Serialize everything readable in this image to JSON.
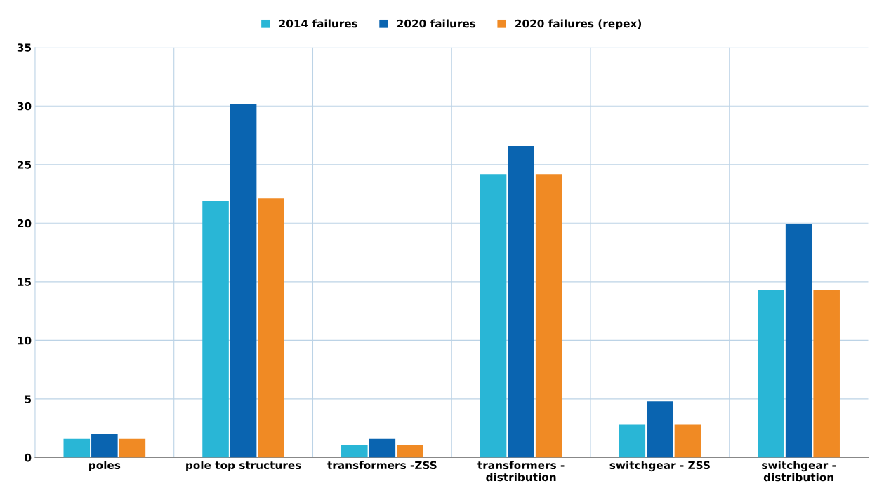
{
  "chart_data": {
    "type": "bar",
    "categories": [
      "poles",
      "pole top structures",
      "transformers -ZSS",
      "transformers -\ndistribution",
      "switchgear - ZSS",
      "switchgear -\ndistribution"
    ],
    "series": [
      {
        "name": "2014 failures",
        "color": "#29b6d6",
        "values": [
          1.6,
          21.9,
          1.1,
          24.2,
          2.8,
          14.3
        ]
      },
      {
        "name": "2020 failures",
        "color": "#0a64b0",
        "values": [
          2.0,
          30.2,
          1.6,
          26.6,
          4.8,
          19.9
        ]
      },
      {
        "name": "2020 failures (repex)",
        "color": "#f08a24",
        "values": [
          1.6,
          22.1,
          1.1,
          24.2,
          2.8,
          14.3
        ]
      }
    ],
    "ylim": [
      0,
      35
    ],
    "yticks": [
      0,
      5,
      10,
      15,
      20,
      25,
      30,
      35
    ],
    "grid": true,
    "legend": "top"
  }
}
